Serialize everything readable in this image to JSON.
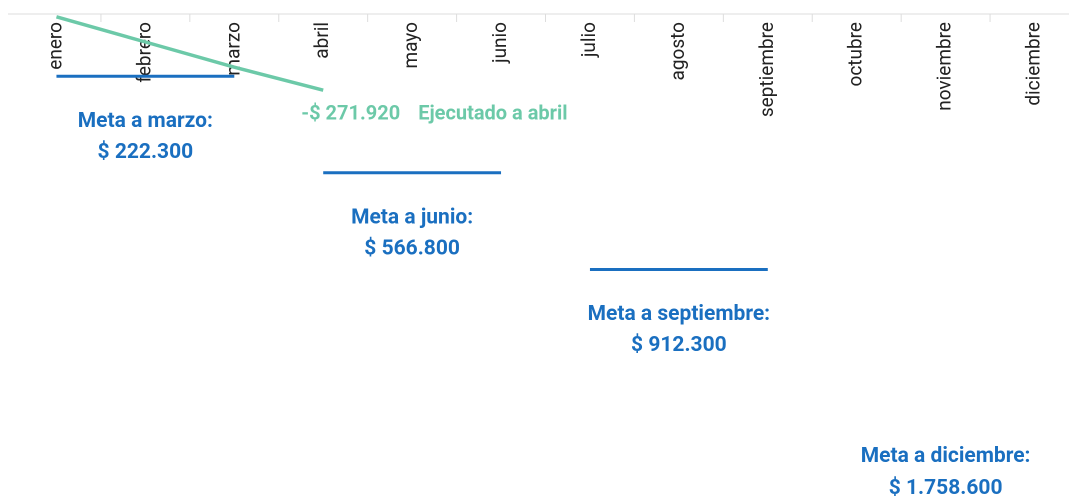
{
  "chart_data": {
    "type": "line",
    "categories": [
      "enero",
      "febrero",
      "marzo",
      "abril",
      "mayo",
      "junio",
      "julio",
      "agosto",
      "septiembre",
      "octubre",
      "noviembre",
      "diciembre"
    ],
    "ylim": [
      0,
      1800000
    ],
    "y_inverted": true,
    "series": [
      {
        "name": "Ejecutado a abril",
        "color": "#6cc9a8",
        "values": [
          10000,
          100000,
          190000,
          271920,
          null,
          null,
          null,
          null,
          null,
          null,
          null,
          null
        ],
        "value_labels": [
          null,
          null,
          null,
          "-$ 271.920",
          null,
          null,
          null,
          null,
          null,
          null,
          null,
          null
        ]
      },
      {
        "color": "#1a6fc0",
        "style": "step",
        "values": [
          222300,
          222300,
          222300,
          566800,
          566800,
          566800,
          912300,
          912300,
          912300,
          1758600,
          1758600,
          1758600
        ],
        "labels": [
          null,
          null,
          "Meta a marzo:",
          null,
          null,
          "Meta a junio:",
          null,
          null,
          "Meta a septiembre:",
          null,
          null,
          "Meta a diciembre:"
        ],
        "value_labels": [
          null,
          null,
          "$ 222.300",
          null,
          null,
          "$ 566.800",
          null,
          null,
          "$ 912.300",
          null,
          null,
          "$ 1.758.600"
        ]
      }
    ]
  }
}
